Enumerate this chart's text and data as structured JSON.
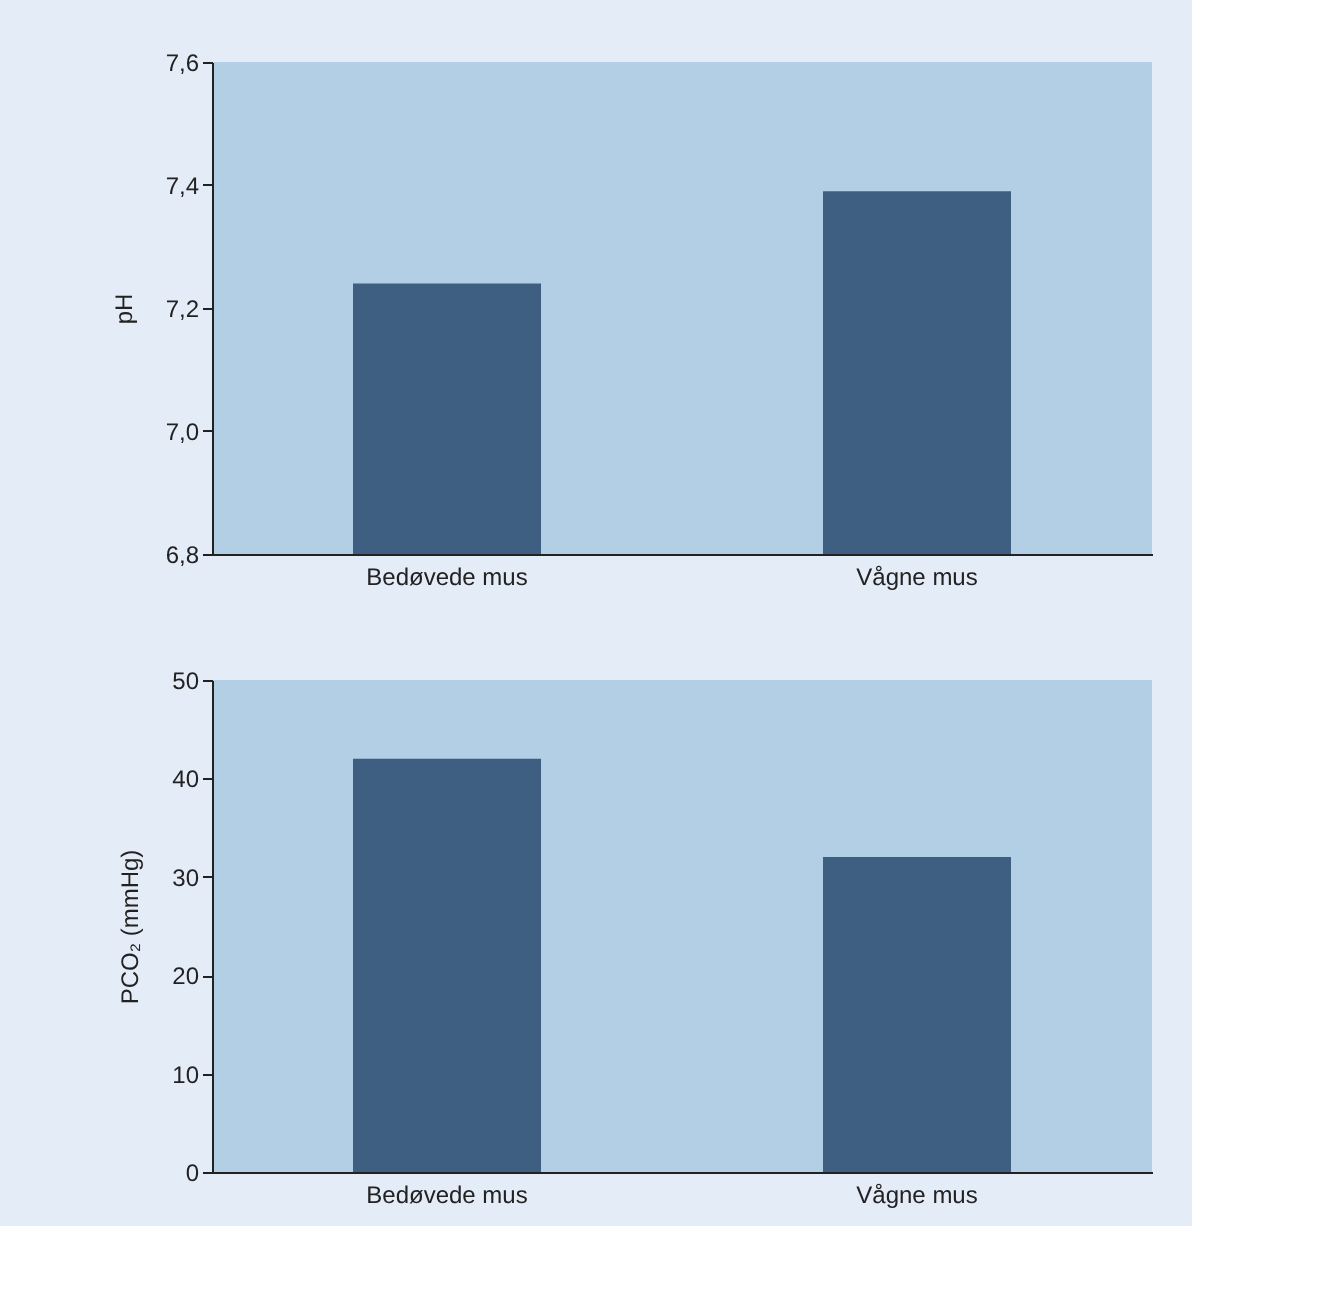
{
  "chart_data": [
    {
      "type": "bar",
      "ylabel": "pH",
      "categories": [
        "Bedøvede mus",
        "Vågne mus"
      ],
      "values": [
        7.24,
        7.39
      ],
      "color": "#3e5f82",
      "ylim": [
        6.8,
        7.6
      ],
      "yticks": [
        {
          "value": 6.8,
          "label": "6,8"
        },
        {
          "value": 7.0,
          "label": "7,0"
        },
        {
          "value": 7.2,
          "label": "7,2"
        },
        {
          "value": 7.4,
          "label": "7,4"
        },
        {
          "value": 7.6,
          "label": "7,6"
        }
      ],
      "grid": false
    },
    {
      "type": "bar",
      "ylabel": "PCO₂ (mmHg)",
      "categories": [
        "Bedøvede mus",
        "Vågne mus"
      ],
      "values": [
        42,
        32
      ],
      "color": "#3e5f82",
      "ylim": [
        0,
        50
      ],
      "yticks": [
        0,
        10,
        20,
        30,
        40,
        50
      ],
      "grid": false
    }
  ]
}
